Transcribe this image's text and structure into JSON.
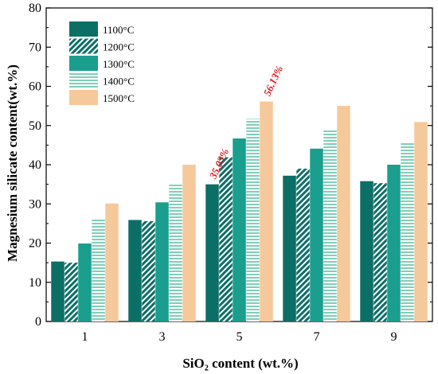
{
  "chart_data": {
    "type": "bar",
    "xlabel": "SiO₂ content (wt.%)",
    "ylabel": "Magnesium silicate content(wt.%)",
    "ylim": [
      0,
      80
    ],
    "yticks": [
      "0",
      "10",
      "20",
      "30",
      "40",
      "50",
      "60",
      "70",
      "80"
    ],
    "categories": [
      "1",
      "3",
      "5",
      "7",
      "9"
    ],
    "grid": false,
    "legend_position": "top-left",
    "series": [
      {
        "name": "1100°C",
        "values": [
          15.3,
          25.9,
          35.0,
          37.2,
          35.8
        ],
        "color": "#0b6f66",
        "pattern": "solid"
      },
      {
        "name": "1200°C",
        "values": [
          15.0,
          25.6,
          41.9,
          39.0,
          35.3
        ],
        "color": "#0b6f66",
        "pattern": "diagonal"
      },
      {
        "name": "1300°C",
        "values": [
          19.9,
          30.4,
          46.7,
          44.1,
          40.0
        ],
        "color": "#1a9e8e",
        "pattern": "solid"
      },
      {
        "name": "1400°C",
        "values": [
          26.0,
          35.3,
          51.7,
          49.1,
          45.9
        ],
        "color": "#7fcfb8",
        "pattern": "horizontal"
      },
      {
        "name": "1500°C",
        "values": [
          30.1,
          40.0,
          56.13,
          55.0,
          50.9
        ],
        "color": "#f5c99b",
        "pattern": "solid"
      }
    ],
    "annotations": [
      {
        "text": "35.03%",
        "category": "5",
        "series": "1100°C",
        "color": "#e8141c"
      },
      {
        "text": "56.13%",
        "category": "5",
        "series": "1500°C",
        "color": "#e8141c"
      }
    ]
  }
}
